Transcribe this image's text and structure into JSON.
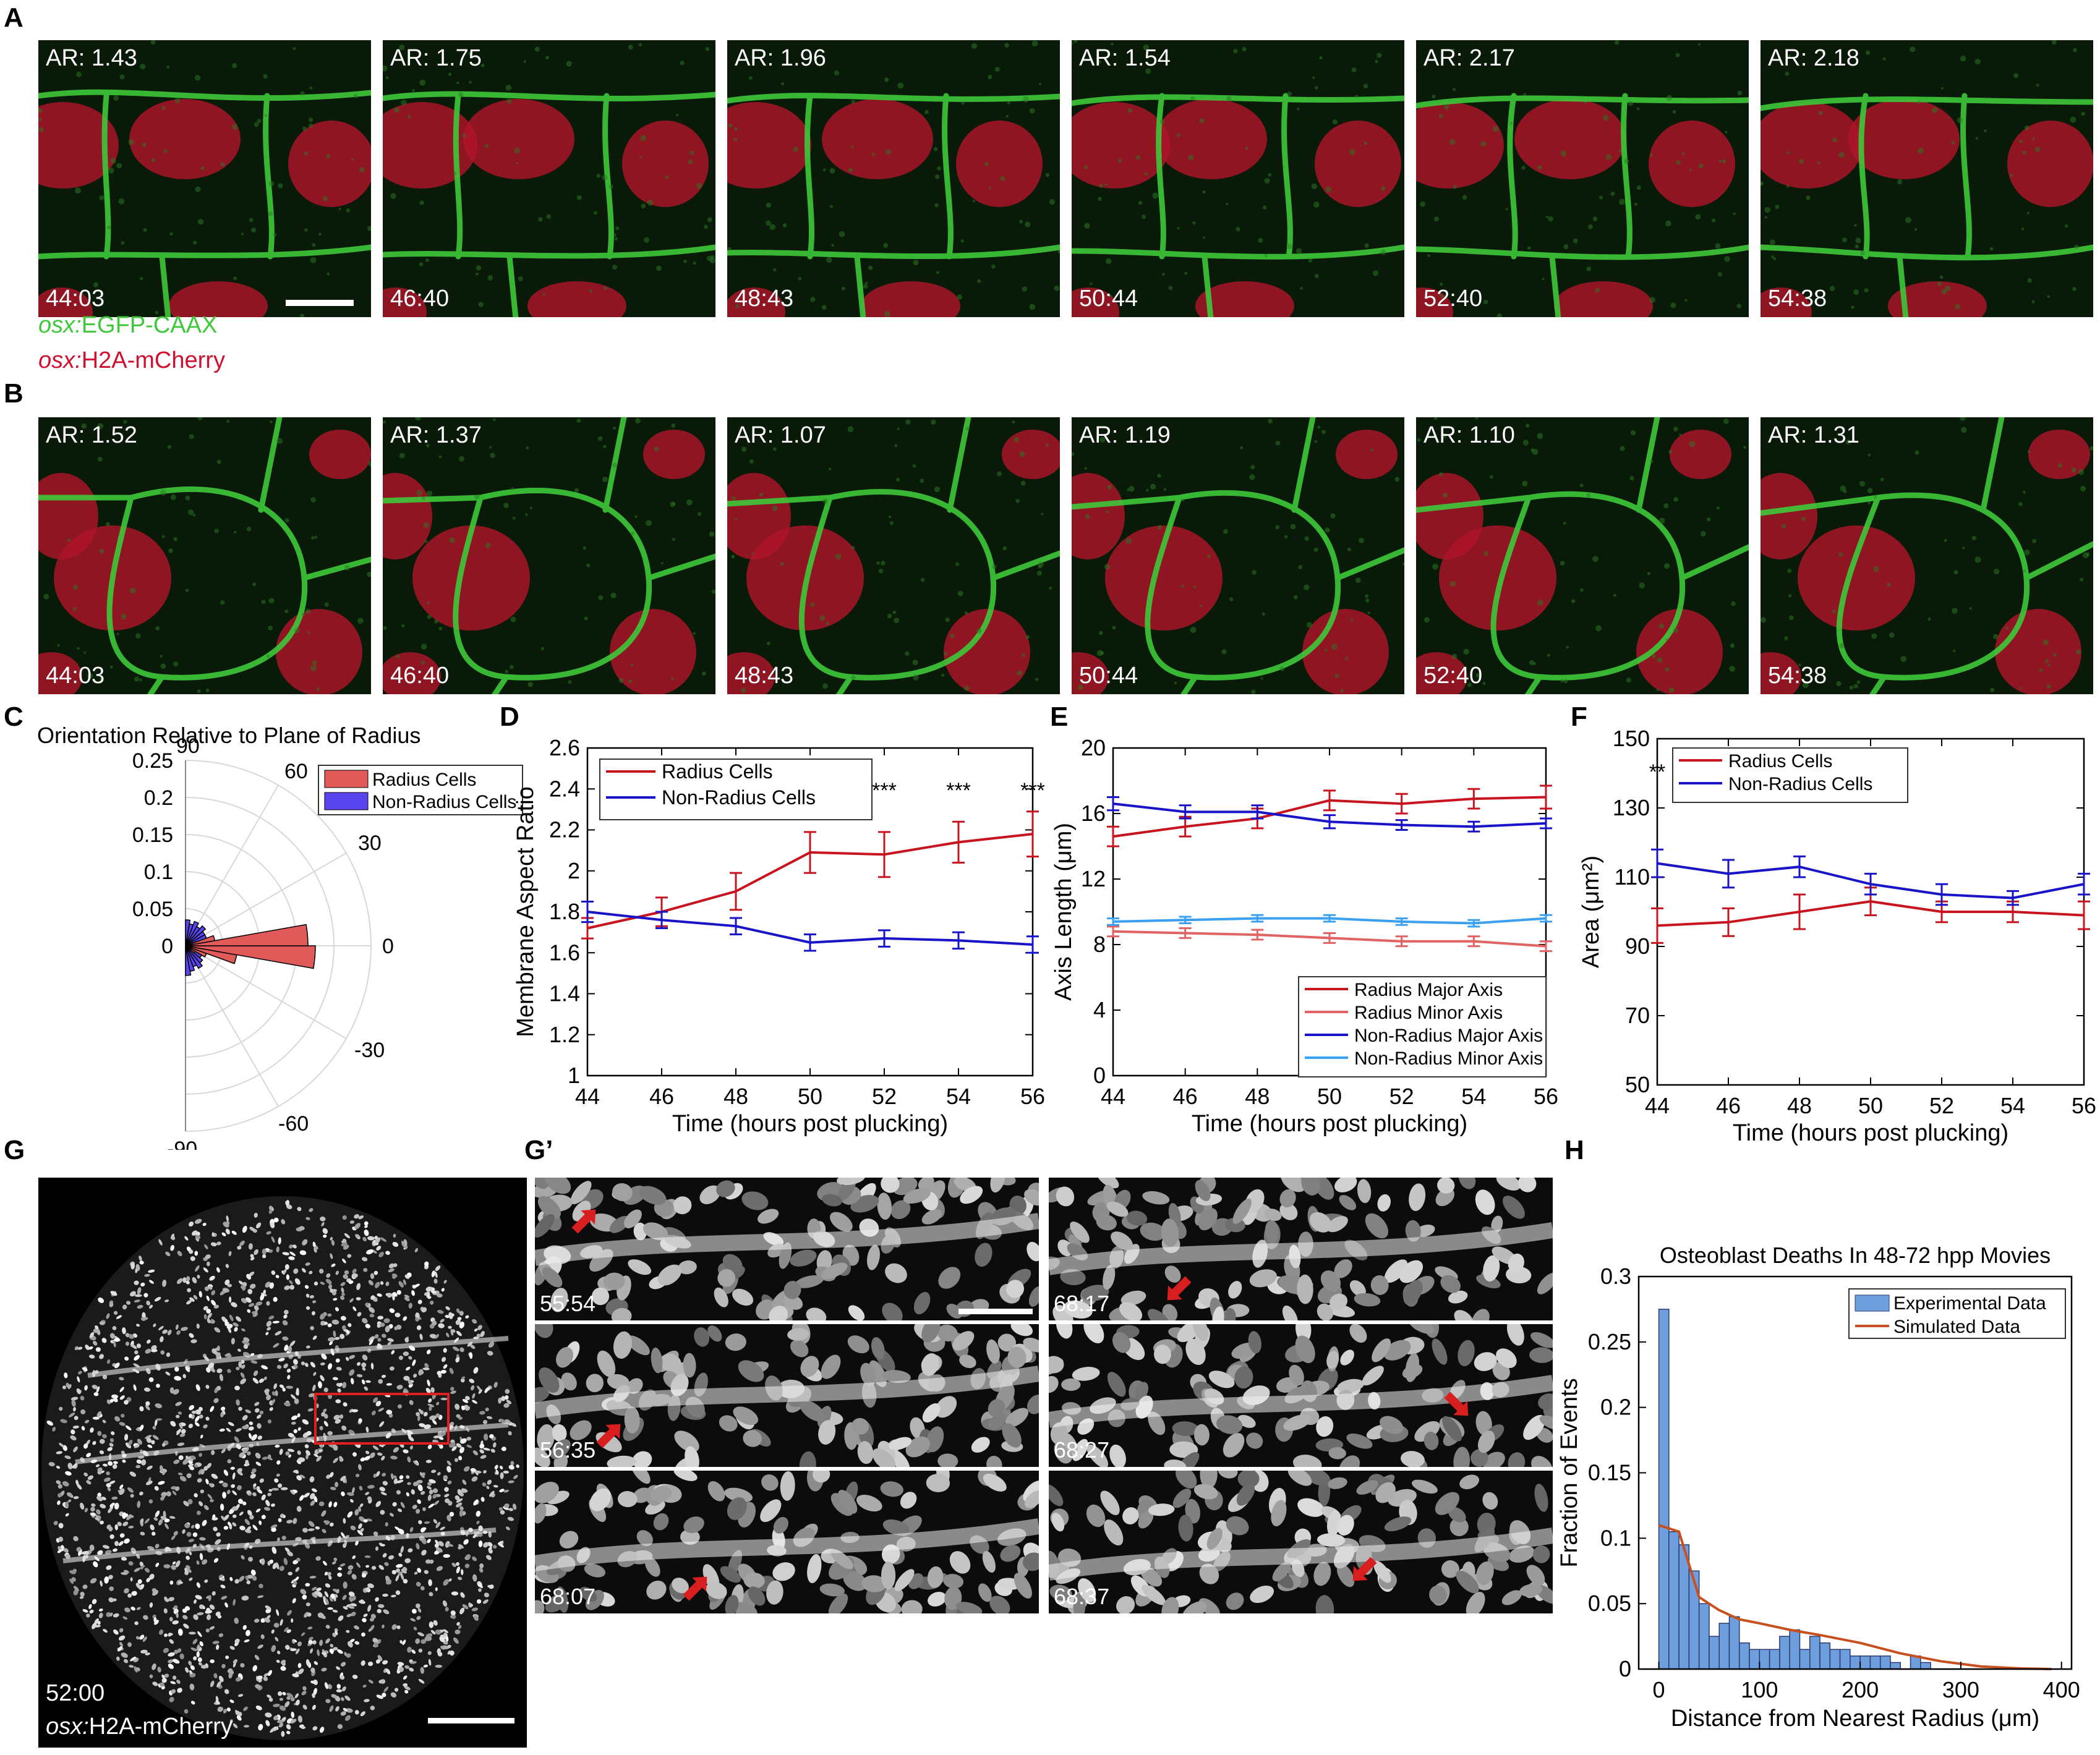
{
  "panel_labels": {
    "A": "A",
    "B": "B",
    "C": "C",
    "D": "D",
    "E": "E",
    "F": "F",
    "G": "G",
    "Gp": "G’",
    "H": "H"
  },
  "row_a": {
    "ar": [
      "AR: 1.43",
      "AR: 1.75",
      "AR: 1.96",
      "AR: 1.54",
      "AR: 2.17",
      "AR: 2.18"
    ],
    "times": [
      "44:03",
      "46:40",
      "48:43",
      "50:44",
      "52:40",
      "54:38"
    ],
    "legend_line1_italic": "osx:",
    "legend_line1_rest": "EGFP-CAAX",
    "legend_line2_italic": "osx:",
    "legend_line2_rest": "H2A-mCherry",
    "green": "#3ec83a",
    "red": "#c0102a"
  },
  "row_b": {
    "ar": [
      "AR: 1.52",
      "AR: 1.37",
      "AR: 1.07",
      "AR: 1.19",
      "AR: 1.10",
      "AR: 1.31"
    ],
    "times": [
      "44:03",
      "46:40",
      "48:43",
      "50:44",
      "52:40",
      "54:38"
    ]
  },
  "panel_g": {
    "time": "52:00",
    "label_italic": "osx:",
    "label_rest": "H2A-mCherry"
  },
  "panel_gp": {
    "times": [
      "55:54",
      "68:17",
      "56:35",
      "68:27",
      "68:07",
      "68:37"
    ]
  },
  "chart_data": [
    {
      "id": "C",
      "type": "polar-histogram",
      "title": "Orientation Relative to Plane of Radius",
      "angle_ticks": [
        "90",
        "60",
        "30",
        "0",
        "-30",
        "-60",
        "-90"
      ],
      "radial_ticks": [
        "0.25",
        "0.2",
        "0.15",
        "0.1",
        "0.05",
        "0"
      ],
      "rmax": 0.25,
      "legend": [
        "Radius Cells",
        "Non-Radius Cells"
      ],
      "colors": {
        "radius": "#e05a5a",
        "nonradius": "#5a46f0"
      },
      "bin_width_deg": 10,
      "series": [
        {
          "name": "Radius Cells",
          "bins_deg": [
            -45,
            -35,
            -25,
            -15,
            -5,
            5,
            15,
            25
          ],
          "values": [
            0.005,
            0.015,
            0.03,
            0.07,
            0.175,
            0.165,
            0.04,
            0.01
          ]
        },
        {
          "name": "Non-Radius Cells",
          "bins_deg": [
            -85,
            -75,
            -65,
            -55,
            -45,
            -35,
            -25,
            -15,
            -5,
            5,
            15,
            25,
            35,
            45,
            55,
            65,
            75,
            85
          ],
          "values": [
            0.04,
            0.035,
            0.03,
            0.035,
            0.03,
            0.025,
            0.025,
            0.03,
            0.02,
            0.02,
            0.025,
            0.03,
            0.03,
            0.035,
            0.03,
            0.035,
            0.03,
            0.035
          ]
        }
      ]
    },
    {
      "id": "D",
      "type": "line",
      "xlabel": "Time (hours post plucking)",
      "ylabel": "Membrane Aspect Ratio",
      "x": [
        44,
        46,
        48,
        50,
        52,
        54,
        56
      ],
      "xlim": [
        44,
        56
      ],
      "ylim": [
        1,
        2.6
      ],
      "yticks": [
        1,
        1.2,
        1.4,
        1.6,
        1.8,
        2,
        2.2,
        2.4,
        2.6
      ],
      "ytick_labels": [
        "1",
        "1.2",
        "1.4",
        "1.6",
        "1.8",
        "2",
        "2.2",
        "2.4",
        "2.6"
      ],
      "series": [
        {
          "name": "Radius Cells",
          "color": "#c8141e",
          "values": [
            1.72,
            1.8,
            1.9,
            2.09,
            2.08,
            2.14,
            2.18
          ],
          "err": [
            0.05,
            0.07,
            0.09,
            0.1,
            0.11,
            0.1,
            0.11
          ]
        },
        {
          "name": "Non-Radius Cells",
          "color": "#1a14c8",
          "values": [
            1.8,
            1.76,
            1.73,
            1.65,
            1.67,
            1.66,
            1.64
          ],
          "err": [
            0.05,
            0.04,
            0.04,
            0.04,
            0.04,
            0.04,
            0.04
          ]
        }
      ],
      "significance": [
        {
          "x": 50,
          "label": "***"
        },
        {
          "x": 52,
          "label": "***"
        },
        {
          "x": 54,
          "label": "***"
        },
        {
          "x": 56,
          "label": "***"
        }
      ]
    },
    {
      "id": "E",
      "type": "line",
      "xlabel": "Time (hours post plucking)",
      "ylabel": "Axis Length (μm)",
      "x": [
        44,
        46,
        48,
        50,
        52,
        54,
        56
      ],
      "xlim": [
        44,
        56
      ],
      "ylim": [
        0,
        20
      ],
      "yticks": [
        0,
        4,
        8,
        12,
        16,
        20
      ],
      "ytick_labels": [
        "0",
        "4",
        "8",
        "12",
        "16",
        "20"
      ],
      "series": [
        {
          "name": "Radius Major Axis",
          "color": "#c8141e",
          "values": [
            14.6,
            15.2,
            15.7,
            16.8,
            16.6,
            16.9,
            17.0
          ],
          "err": [
            0.6,
            0.6,
            0.6,
            0.6,
            0.6,
            0.6,
            0.7
          ]
        },
        {
          "name": "Radius Minor Axis",
          "color": "#e06464",
          "values": [
            8.8,
            8.7,
            8.6,
            8.4,
            8.2,
            8.2,
            7.9
          ],
          "err": [
            0.3,
            0.3,
            0.3,
            0.3,
            0.3,
            0.3,
            0.3
          ]
        },
        {
          "name": "Non-Radius Major Axis",
          "color": "#1a14c8",
          "values": [
            16.6,
            16.1,
            16.1,
            15.5,
            15.3,
            15.2,
            15.4
          ],
          "err": [
            0.4,
            0.4,
            0.4,
            0.4,
            0.3,
            0.3,
            0.3
          ]
        },
        {
          "name": "Non-Radius Minor Axis",
          "color": "#3ca0f0",
          "values": [
            9.4,
            9.5,
            9.6,
            9.6,
            9.4,
            9.3,
            9.6
          ],
          "err": [
            0.2,
            0.2,
            0.2,
            0.2,
            0.2,
            0.2,
            0.2
          ]
        }
      ]
    },
    {
      "id": "F",
      "type": "line",
      "xlabel": "Time (hours post plucking)",
      "ylabel": "Area (μm²)",
      "x": [
        44,
        46,
        48,
        50,
        52,
        54,
        56
      ],
      "xlim": [
        44,
        56
      ],
      "ylim": [
        50,
        150
      ],
      "yticks": [
        50,
        70,
        90,
        110,
        130,
        150
      ],
      "ytick_labels": [
        "50",
        "70",
        "90",
        "110",
        "130",
        "150"
      ],
      "series": [
        {
          "name": "Radius Cells",
          "color": "#c8141e",
          "values": [
            96,
            97,
            100,
            103,
            100,
            100,
            99
          ],
          "err": [
            5,
            4,
            5,
            4,
            3,
            3,
            4
          ]
        },
        {
          "name": "Non-Radius Cells",
          "color": "#1a14c8",
          "values": [
            114,
            111,
            113,
            108,
            105,
            104,
            108
          ],
          "err": [
            4,
            4,
            3,
            3,
            3,
            2,
            3
          ]
        }
      ],
      "significance": [
        {
          "x": 44,
          "label": "**"
        },
        {
          "x": 46,
          "label": "**"
        },
        {
          "x": 48,
          "label": "*"
        }
      ]
    },
    {
      "id": "H",
      "type": "bar",
      "title": "Osteoblast Deaths In 48-72 hpp Movies",
      "xlabel": "Distance from Nearest Radius (μm)",
      "ylabel": "Fraction of Events",
      "xlim": [
        -20,
        410
      ],
      "ylim": [
        0,
        0.3
      ],
      "xticks": [
        0,
        100,
        200,
        300,
        400
      ],
      "xtick_labels": [
        "0",
        "100",
        "200",
        "300",
        "400"
      ],
      "yticks": [
        0,
        0.05,
        0.1,
        0.15,
        0.2,
        0.25,
        0.3
      ],
      "ytick_labels": [
        "0",
        "0.05",
        "0.1",
        "0.15",
        "0.2",
        "0.25",
        "0.3"
      ],
      "bin_width": 10,
      "bin_starts": [
        0,
        10,
        20,
        30,
        40,
        50,
        60,
        70,
        80,
        90,
        100,
        110,
        120,
        130,
        140,
        150,
        160,
        170,
        180,
        190,
        200,
        210,
        220,
        230,
        240,
        250,
        260
      ],
      "values": [
        0.275,
        0.105,
        0.095,
        0.075,
        0.05,
        0.025,
        0.035,
        0.04,
        0.02,
        0.015,
        0.015,
        0.015,
        0.025,
        0.03,
        0.015,
        0.025,
        0.02,
        0.015,
        0.015,
        0.01,
        0.01,
        0.01,
        0.01,
        0.005,
        0.0,
        0.01,
        0.005
      ],
      "legend": [
        "Experimental Data",
        "Simulated Data"
      ],
      "bar_color": "#6e9ede",
      "line_color": "#c8501e",
      "simulated": {
        "x": [
          0,
          20,
          30,
          40,
          60,
          80,
          100,
          130,
          160,
          200,
          240,
          280,
          320,
          360,
          390
        ],
        "y": [
          0.11,
          0.105,
          0.08,
          0.055,
          0.045,
          0.038,
          0.035,
          0.03,
          0.026,
          0.02,
          0.012,
          0.006,
          0.002,
          0.0005,
          0
        ]
      }
    }
  ]
}
